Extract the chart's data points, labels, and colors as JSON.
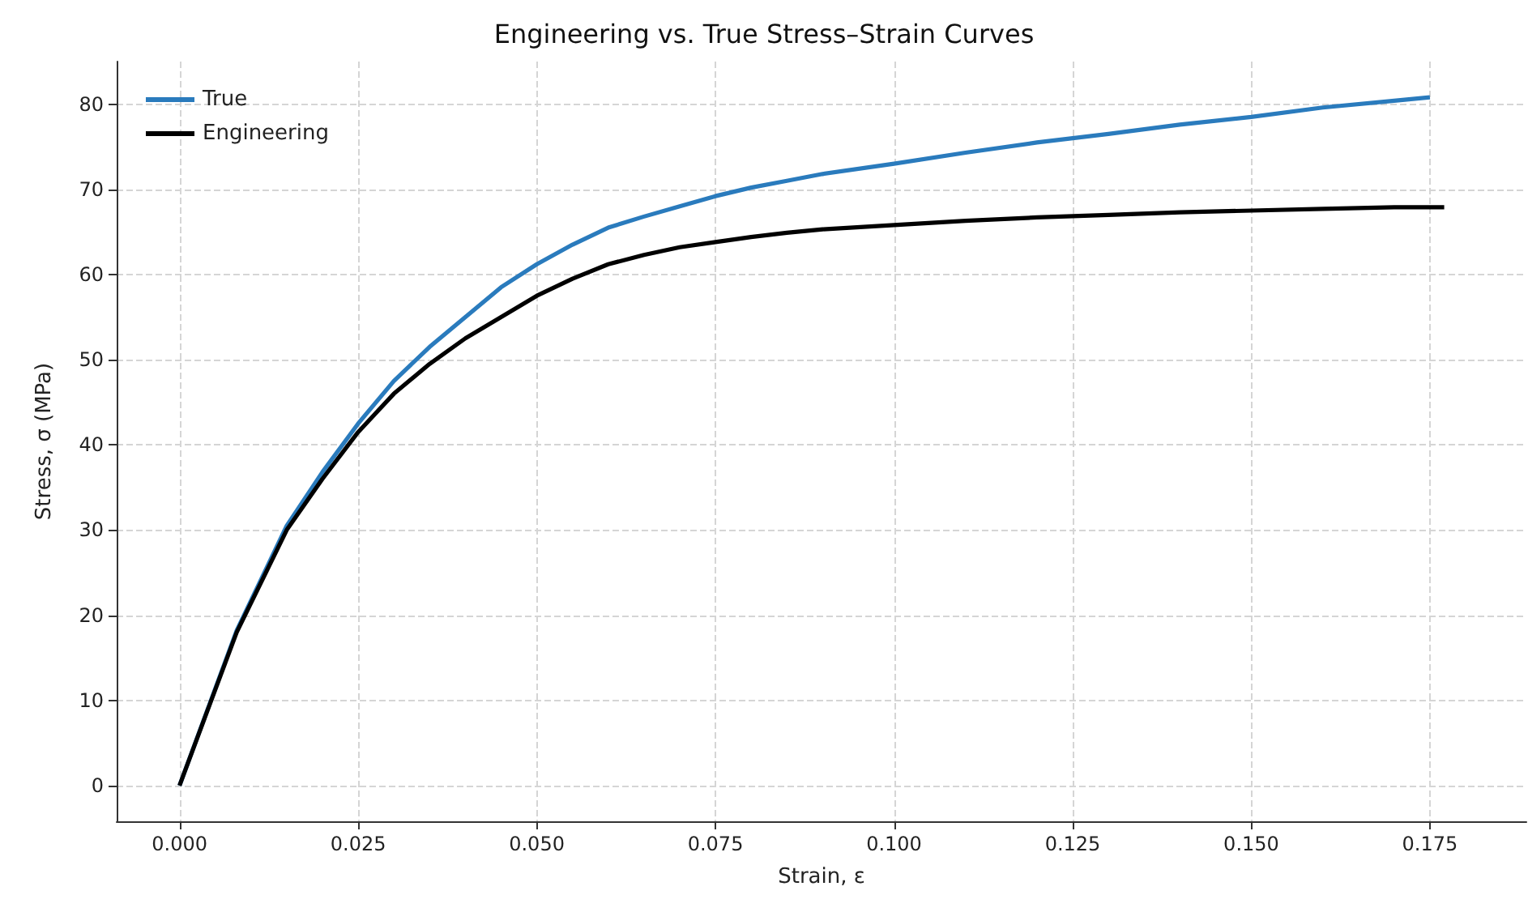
{
  "chart_data": {
    "type": "line",
    "title": "Engineering vs. True Stress–Strain Curves",
    "xlabel": "Strain, ε",
    "ylabel": "Stress, σ (MPa)",
    "xlim": [
      -0.0088,
      0.1885
    ],
    "ylim": [
      -4.2,
      85
    ],
    "xticks": [
      {
        "value": 0,
        "label": "0.000"
      },
      {
        "value": 0.025,
        "label": "0.025"
      },
      {
        "value": 0.05,
        "label": "0.050"
      },
      {
        "value": 0.075,
        "label": "0.075"
      },
      {
        "value": 0.1,
        "label": "0.100"
      },
      {
        "value": 0.125,
        "label": "0.125"
      },
      {
        "value": 0.15,
        "label": "0.150"
      },
      {
        "value": 0.175,
        "label": "0.175"
      }
    ],
    "yticks": [
      0,
      10,
      20,
      30,
      40,
      50,
      60,
      70,
      80
    ],
    "grid": true,
    "legend": "top left",
    "marker": "none",
    "line_style": "solid",
    "series": [
      {
        "name": "True",
        "color": "#2a7bbd",
        "x": [
          0,
          0.008,
          0.015,
          0.02,
          0.025,
          0.03,
          0.035,
          0.04,
          0.045,
          0.05,
          0.055,
          0.06,
          0.065,
          0.07,
          0.075,
          0.08,
          0.085,
          0.09,
          0.1,
          0.11,
          0.12,
          0.13,
          0.14,
          0.15,
          0.16,
          0.17,
          0.175
        ],
        "values": [
          0,
          18.2,
          30.5,
          36.8,
          42.5,
          47.5,
          51.5,
          55,
          58.5,
          61.2,
          63.5,
          65.5,
          66.8,
          68,
          69.2,
          70.2,
          71,
          71.8,
          73,
          74.3,
          75.5,
          76.5,
          77.6,
          78.5,
          79.6,
          80.4,
          80.8
        ]
      },
      {
        "name": "Engineering",
        "color": "#000000",
        "x": [
          0,
          0.008,
          0.015,
          0.02,
          0.025,
          0.03,
          0.035,
          0.04,
          0.045,
          0.05,
          0.055,
          0.06,
          0.065,
          0.07,
          0.075,
          0.08,
          0.085,
          0.09,
          0.1,
          0.11,
          0.12,
          0.13,
          0.14,
          0.15,
          0.16,
          0.17,
          0.177
        ],
        "values": [
          0,
          18,
          30,
          36,
          41.5,
          46,
          49.5,
          52.5,
          55,
          57.5,
          59.5,
          61.2,
          62.3,
          63.2,
          63.8,
          64.4,
          64.9,
          65.3,
          65.8,
          66.3,
          66.7,
          67,
          67.3,
          67.5,
          67.7,
          67.9,
          67.9
        ]
      }
    ]
  }
}
